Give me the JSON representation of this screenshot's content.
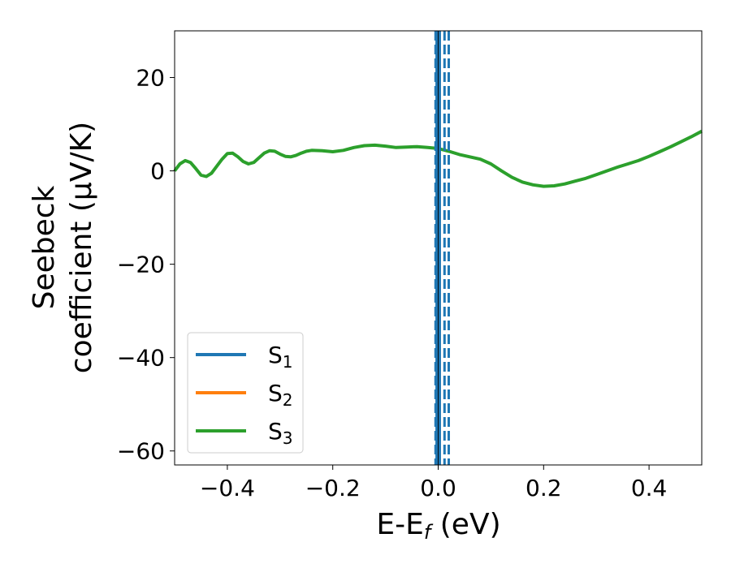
{
  "chart_data": {
    "type": "line",
    "xlabel": "E-E",
    "xlabel_sub": "f",
    "xlabel_unit": " (eV)",
    "ylabel_line1": "Seebeck",
    "ylabel_line2": "coefficient  (μV/K)",
    "xlim": [
      -0.5,
      0.5
    ],
    "ylim": [
      -63,
      30
    ],
    "x_ticks": [
      -0.4,
      -0.2,
      0.0,
      0.2,
      0.4
    ],
    "x_tick_labels": [
      "−0.4",
      "−0.2",
      "0.0",
      "0.2",
      "0.4"
    ],
    "y_ticks": [
      20,
      0,
      -20,
      -40,
      -60
    ],
    "y_tick_labels": [
      "20",
      "0",
      "−20",
      "−40",
      "−60"
    ],
    "grid": false,
    "legend_position": "lower-left",
    "vertical_lines": [
      {
        "x": 0.0,
        "style": "solid",
        "color": "#000000"
      },
      {
        "x": -0.003,
        "style": "solid",
        "color": "#1f77b4"
      },
      {
        "x": 0.003,
        "style": "solid",
        "color": "#1f77b4"
      },
      {
        "x": -0.005,
        "style": "dashed",
        "color": "#1f77b4"
      },
      {
        "x": 0.012,
        "style": "dashed",
        "color": "#1f77b4"
      },
      {
        "x": 0.02,
        "style": "dashed",
        "color": "#1f77b4"
      }
    ],
    "series": [
      {
        "name": "S",
        "sub": "1",
        "color": "#1f77b4",
        "x": [],
        "y": []
      },
      {
        "name": "S",
        "sub": "2",
        "color": "#ff7f0e",
        "x": [],
        "y": []
      },
      {
        "name": "S",
        "sub": "3",
        "color": "#2ca02c",
        "x": [
          -0.5,
          -0.49,
          -0.48,
          -0.47,
          -0.46,
          -0.45,
          -0.44,
          -0.43,
          -0.42,
          -0.41,
          -0.4,
          -0.39,
          -0.38,
          -0.37,
          -0.36,
          -0.35,
          -0.34,
          -0.33,
          -0.32,
          -0.31,
          -0.3,
          -0.29,
          -0.28,
          -0.27,
          -0.26,
          -0.25,
          -0.24,
          -0.22,
          -0.2,
          -0.18,
          -0.16,
          -0.14,
          -0.12,
          -0.1,
          -0.08,
          -0.06,
          -0.04,
          -0.02,
          0.0,
          0.02,
          0.04,
          0.06,
          0.08,
          0.1,
          0.12,
          0.14,
          0.16,
          0.18,
          0.2,
          0.22,
          0.24,
          0.26,
          0.28,
          0.3,
          0.32,
          0.34,
          0.36,
          0.38,
          0.4,
          0.42,
          0.44,
          0.46,
          0.48,
          0.5
        ],
        "y": [
          0.0,
          1.5,
          2.2,
          1.8,
          0.5,
          -0.9,
          -1.2,
          -0.5,
          1.0,
          2.5,
          3.7,
          3.8,
          3.0,
          2.0,
          1.5,
          1.8,
          2.8,
          3.8,
          4.3,
          4.2,
          3.6,
          3.1,
          3.0,
          3.3,
          3.8,
          4.2,
          4.4,
          4.3,
          4.1,
          4.4,
          5.0,
          5.4,
          5.5,
          5.3,
          5.0,
          5.1,
          5.2,
          5.0,
          4.8,
          4.2,
          3.5,
          3.0,
          2.5,
          1.5,
          0.0,
          -1.4,
          -2.4,
          -3.0,
          -3.3,
          -3.2,
          -2.8,
          -2.2,
          -1.6,
          -0.8,
          0.0,
          0.8,
          1.5,
          2.2,
          3.1,
          4.1,
          5.1,
          6.2,
          7.3,
          8.5
        ]
      }
    ]
  }
}
